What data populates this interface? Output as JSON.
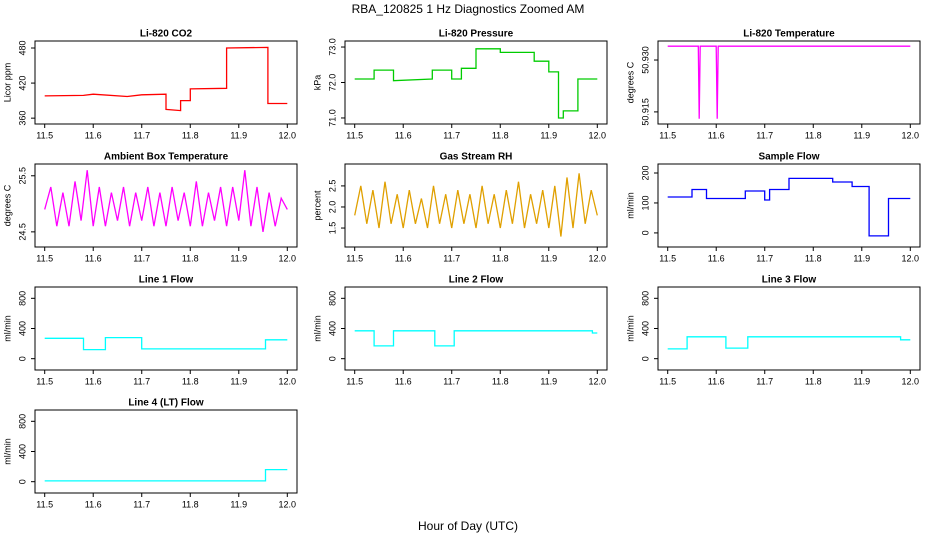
{
  "title": "RBA_120825  1 Hz Diagnostics Zoomed AM",
  "xlabel": "Hour of Day (UTC)",
  "chart_data": [
    {
      "type": "line",
      "title": "Li-820 CO2",
      "ylabel": "Licor ppm",
      "color": "#ff0000",
      "x": [
        11.5,
        11.58,
        11.6,
        11.67,
        11.7,
        11.75,
        11.75,
        11.78,
        11.78,
        11.8,
        11.8,
        11.875,
        11.875,
        11.96,
        11.96,
        12.0
      ],
      "values": [
        398,
        399,
        401,
        397,
        400,
        401,
        375,
        373,
        390,
        390,
        410,
        411,
        480,
        481,
        385,
        385
      ],
      "xlim": [
        11.48,
        12.02
      ],
      "xticks": [
        11.5,
        11.6,
        11.7,
        11.8,
        11.9,
        {
          "value": 12,
          "label": "12.0"
        }
      ],
      "ylim": [
        350,
        492
      ],
      "yticks": [
        360,
        420,
        480
      ]
    },
    {
      "type": "line",
      "title": "Li-820 Pressure",
      "ylabel": "kPa",
      "color": "#00cc00",
      "x": [
        11.5,
        11.54,
        11.54,
        11.58,
        11.58,
        11.66,
        11.66,
        11.7,
        11.7,
        11.72,
        11.72,
        11.75,
        11.75,
        11.8,
        11.8,
        11.87,
        11.87,
        11.9,
        11.9,
        11.92,
        11.92,
        11.93,
        11.93,
        11.96,
        11.96,
        12.0
      ],
      "values": [
        72.1,
        72.1,
        72.35,
        72.35,
        72.05,
        72.1,
        72.35,
        72.35,
        72.1,
        72.1,
        72.4,
        72.4,
        72.95,
        72.95,
        72.85,
        72.85,
        72.6,
        72.6,
        72.3,
        72.3,
        71.0,
        71.0,
        71.2,
        71.2,
        72.1,
        72.1
      ],
      "xlim": [
        11.48,
        12.02
      ],
      "xticks": [
        11.5,
        11.6,
        11.7,
        11.8,
        11.9,
        {
          "value": 12,
          "label": "12.0"
        }
      ],
      "ylim": [
        70.83,
        73.17
      ],
      "yticks": [
        {
          "value": 71,
          "label": "71.0"
        },
        {
          "value": 72,
          "label": "72.0"
        },
        {
          "value": 73,
          "label": "73.0"
        }
      ]
    },
    {
      "type": "line",
      "title": "Li-820 Temperature",
      "ylabel": "degrees C",
      "color": "#ff00ff",
      "x": [
        11.5,
        11.563,
        11.565,
        11.567,
        11.6,
        11.602,
        11.604,
        12.0
      ],
      "values": [
        50.934,
        50.934,
        50.913,
        50.934,
        50.934,
        50.913,
        50.934,
        50.934
      ],
      "xlim": [
        11.48,
        12.02
      ],
      "xticks": [
        11.5,
        11.6,
        11.7,
        11.8,
        11.9,
        {
          "value": 12,
          "label": "12.0"
        }
      ],
      "ylim": [
        50.9115,
        50.9355
      ],
      "yticks": [
        50.915,
        {
          "value": 50.93,
          "label": "50.930"
        }
      ]
    },
    {
      "type": "line",
      "title": "Ambient Box Temperature",
      "ylabel": "degrees C",
      "color": "#ff00ff",
      "x": [
        11.5,
        11.5125,
        11.525,
        11.5375,
        11.55,
        11.5625,
        11.575,
        11.5875,
        11.6,
        11.6125,
        11.625,
        11.6375,
        11.65,
        11.6625,
        11.675,
        11.6875,
        11.7,
        11.7125,
        11.725,
        11.7375,
        11.75,
        11.7625,
        11.775,
        11.7875,
        11.8,
        11.8125,
        11.825,
        11.8375,
        11.85,
        11.8625,
        11.875,
        11.8875,
        11.9,
        11.9125,
        11.925,
        11.9375,
        11.95,
        11.9625,
        11.975,
        11.9875,
        12.0
      ],
      "values": [
        24.9,
        25.3,
        24.6,
        25.2,
        24.6,
        25.4,
        24.7,
        25.6,
        24.6,
        25.3,
        24.6,
        25.2,
        24.7,
        25.3,
        24.6,
        25.2,
        24.7,
        25.3,
        24.6,
        25.2,
        24.6,
        25.3,
        24.7,
        25.2,
        24.6,
        25.4,
        24.6,
        25.2,
        24.7,
        25.3,
        24.6,
        25.3,
        24.7,
        25.6,
        24.6,
        25.3,
        24.5,
        25.2,
        24.6,
        25.1,
        24.9
      ],
      "xlim": [
        11.48,
        12.02
      ],
      "xticks": [
        11.5,
        11.6,
        11.7,
        11.8,
        11.9,
        {
          "value": 12,
          "label": "12.0"
        }
      ],
      "ylim": [
        24.23,
        25.71
      ],
      "yticks": [
        24.5,
        25.5
      ]
    },
    {
      "type": "line",
      "title": "Gas Stream RH",
      "ylabel": "percent",
      "color": "#e0a000",
      "x": [
        11.5,
        11.5125,
        11.525,
        11.5375,
        11.55,
        11.5625,
        11.575,
        11.5875,
        11.6,
        11.6125,
        11.625,
        11.6375,
        11.65,
        11.6625,
        11.675,
        11.6875,
        11.7,
        11.7125,
        11.725,
        11.7375,
        11.75,
        11.7625,
        11.775,
        11.7875,
        11.8,
        11.8125,
        11.825,
        11.8375,
        11.85,
        11.8625,
        11.875,
        11.8875,
        11.9,
        11.9125,
        11.925,
        11.9375,
        11.95,
        11.9625,
        11.975,
        11.9875,
        12.0
      ],
      "values": [
        1.8,
        2.5,
        1.6,
        2.4,
        1.5,
        2.6,
        1.6,
        2.3,
        1.5,
        2.4,
        1.6,
        2.2,
        1.5,
        2.5,
        1.6,
        2.3,
        1.5,
        2.4,
        1.6,
        2.3,
        1.5,
        2.5,
        1.6,
        2.3,
        1.5,
        2.4,
        1.6,
        2.6,
        1.5,
        2.3,
        1.6,
        2.4,
        1.5,
        2.5,
        1.3,
        2.7,
        1.5,
        2.8,
        1.6,
        2.4,
        1.8
      ],
      "xlim": [
        11.48,
        12.02
      ],
      "xticks": [
        11.5,
        11.6,
        11.7,
        11.8,
        11.9,
        {
          "value": 12,
          "label": "12.0"
        }
      ],
      "ylim": [
        1.05,
        3.02
      ],
      "yticks": [
        1.5,
        {
          "value": 2,
          "label": "2.0"
        },
        2.5
      ]
    },
    {
      "type": "line",
      "title": "Sample Flow",
      "ylabel": "ml/min",
      "color": "#0000ff",
      "x": [
        11.5,
        11.55,
        11.55,
        11.58,
        11.58,
        11.66,
        11.66,
        11.7,
        11.7,
        11.71,
        11.71,
        11.75,
        11.75,
        11.84,
        11.84,
        11.88,
        11.88,
        11.915,
        11.915,
        11.955,
        11.955,
        12.0
      ],
      "values": [
        120,
        120,
        145,
        145,
        115,
        115,
        140,
        140,
        110,
        110,
        145,
        145,
        182,
        182,
        170,
        170,
        155,
        155,
        -10,
        -10,
        115,
        115
      ],
      "xlim": [
        11.48,
        12.02
      ],
      "xticks": [
        11.5,
        11.6,
        11.7,
        11.8,
        11.9,
        {
          "value": 12,
          "label": "12.0"
        }
      ],
      "ylim": [
        -47,
        230
      ],
      "yticks": [
        0,
        100,
        200
      ]
    },
    {
      "type": "line",
      "title": "Line 1 Flow",
      "ylabel": "ml/min",
      "color": "#00ffff",
      "x": [
        11.5,
        11.58,
        11.58,
        11.625,
        11.625,
        11.7,
        11.7,
        11.955,
        11.955,
        12.0
      ],
      "values": [
        270,
        270,
        120,
        120,
        280,
        280,
        130,
        130,
        250,
        250
      ],
      "xlim": [
        11.48,
        12.02
      ],
      "xticks": [
        11.5,
        11.6,
        11.7,
        11.8,
        11.9,
        {
          "value": 12,
          "label": "12.0"
        }
      ],
      "ylim": [
        -150,
        950
      ],
      "yticks": [
        0,
        400,
        800
      ]
    },
    {
      "type": "line",
      "title": "Line 2 Flow",
      "ylabel": "ml/min",
      "color": "#00ffff",
      "x": [
        11.5,
        11.54,
        11.54,
        11.58,
        11.58,
        11.665,
        11.665,
        11.705,
        11.705,
        11.99,
        11.99,
        12.0
      ],
      "values": [
        370,
        370,
        170,
        170,
        370,
        370,
        170,
        170,
        370,
        370,
        340,
        340
      ],
      "xlim": [
        11.48,
        12.02
      ],
      "xticks": [
        11.5,
        11.6,
        11.7,
        11.8,
        11.9,
        {
          "value": 12,
          "label": "12.0"
        }
      ],
      "ylim": [
        -150,
        950
      ],
      "yticks": [
        0,
        400,
        800
      ]
    },
    {
      "type": "line",
      "title": "Line 3 Flow",
      "ylabel": "ml/min",
      "color": "#00ffff",
      "x": [
        11.5,
        11.54,
        11.54,
        11.62,
        11.62,
        11.665,
        11.665,
        11.98,
        11.98,
        12.0
      ],
      "values": [
        130,
        130,
        290,
        290,
        140,
        140,
        290,
        290,
        250,
        250
      ],
      "xlim": [
        11.48,
        12.02
      ],
      "xticks": [
        11.5,
        11.6,
        11.7,
        11.8,
        11.9,
        {
          "value": 12,
          "label": "12.0"
        }
      ],
      "ylim": [
        -150,
        950
      ],
      "yticks": [
        0,
        400,
        800
      ]
    },
    {
      "type": "line",
      "title": "Line 4 (LT) Flow",
      "ylabel": "ml/min",
      "color": "#00ffff",
      "x": [
        11.5,
        11.955,
        11.955,
        12.0
      ],
      "values": [
        10,
        10,
        160,
        160
      ],
      "xlim": [
        11.48,
        12.02
      ],
      "xticks": [
        11.5,
        11.6,
        11.7,
        11.8,
        11.9,
        {
          "value": 12,
          "label": "12.0"
        }
      ],
      "ylim": [
        -150,
        950
      ],
      "yticks": [
        0,
        400,
        800
      ]
    }
  ]
}
